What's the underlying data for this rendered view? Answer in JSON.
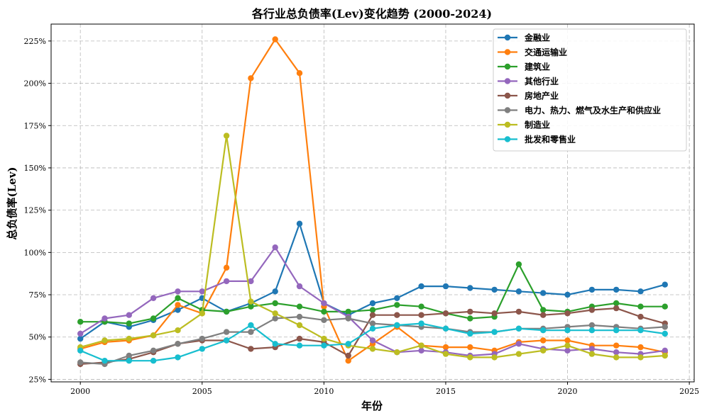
{
  "chart_data": {
    "type": "line",
    "title": "各行业总负债率(Lev)变化趋势 (2000-2024)",
    "xlabel": "年份",
    "ylabel": "总负债率(Lev)",
    "xlim": [
      1998.8,
      2025.2
    ],
    "ylim": [
      23.5,
      235
    ],
    "xticks": [
      2000,
      2005,
      2010,
      2015,
      2020,
      2025
    ],
    "yticks": [
      25,
      50,
      75,
      100,
      125,
      150,
      175,
      200,
      225
    ],
    "ytick_suffix": "%",
    "grid": true,
    "legend_position": "top-right",
    "x": [
      2000,
      2001,
      2002,
      2003,
      2004,
      2005,
      2006,
      2007,
      2008,
      2009,
      2010,
      2011,
      2012,
      2013,
      2014,
      2015,
      2016,
      2017,
      2018,
      2019,
      2020,
      2021,
      2022,
      2023,
      2024
    ],
    "series": [
      {
        "name": "金融业",
        "color": "#1f77b4",
        "values": [
          49,
          59,
          56,
          60,
          66,
          73,
          65,
          70,
          77,
          117,
          70,
          63,
          70,
          73,
          80,
          80,
          79,
          78,
          77,
          76,
          75,
          78,
          78,
          77,
          81
        ]
      },
      {
        "name": "交通运输业",
        "color": "#ff7f0e",
        "values": [
          43,
          47,
          48,
          51,
          69,
          64,
          91,
          203,
          226,
          206,
          68,
          36,
          46,
          56,
          45,
          44,
          44,
          42,
          47,
          48,
          48,
          45,
          45,
          44,
          41
        ]
      },
      {
        "name": "建筑业",
        "color": "#2ca02c",
        "values": [
          59,
          59,
          58,
          61,
          73,
          66,
          65,
          68,
          70,
          68,
          65,
          65,
          66,
          69,
          68,
          64,
          61,
          62,
          93,
          66,
          65,
          68,
          70,
          68,
          68
        ]
      },
      {
        "name": "其他行业",
        "color": "#9467bd",
        "values": [
          52,
          61,
          63,
          73,
          77,
          77,
          83,
          83,
          103,
          80,
          70,
          62,
          48,
          41,
          42,
          41,
          39,
          40,
          46,
          43,
          42,
          43,
          41,
          40,
          42
        ]
      },
      {
        "name": "房地产业",
        "color": "#8c564b",
        "values": [
          34,
          35,
          37,
          41,
          46,
          48,
          48,
          43,
          44,
          49,
          47,
          39,
          63,
          63,
          63,
          64,
          65,
          64,
          65,
          63,
          64,
          66,
          67,
          62,
          58
        ]
      },
      {
        "name": "电力、热力、燃气及水生产和供应业",
        "color": "#7f7f7f",
        "values": [
          35,
          34,
          39,
          42,
          46,
          49,
          53,
          53,
          61,
          62,
          60,
          61,
          58,
          57,
          56,
          55,
          53,
          53,
          55,
          55,
          56,
          57,
          56,
          55,
          56
        ]
      },
      {
        "name": "制造业",
        "color": "#bcbd22",
        "values": [
          44,
          48,
          49,
          51,
          54,
          64,
          169,
          71,
          64,
          57,
          49,
          45,
          43,
          41,
          45,
          40,
          38,
          38,
          40,
          42,
          45,
          40,
          38,
          38,
          39
        ]
      },
      {
        "name": "批发和零售业",
        "color": "#17becf",
        "values": [
          42,
          36,
          36,
          36,
          38,
          43,
          48,
          57,
          46,
          45,
          45,
          46,
          55,
          57,
          58,
          55,
          52,
          53,
          55,
          54,
          54,
          54,
          54,
          54,
          52
        ]
      }
    ]
  }
}
